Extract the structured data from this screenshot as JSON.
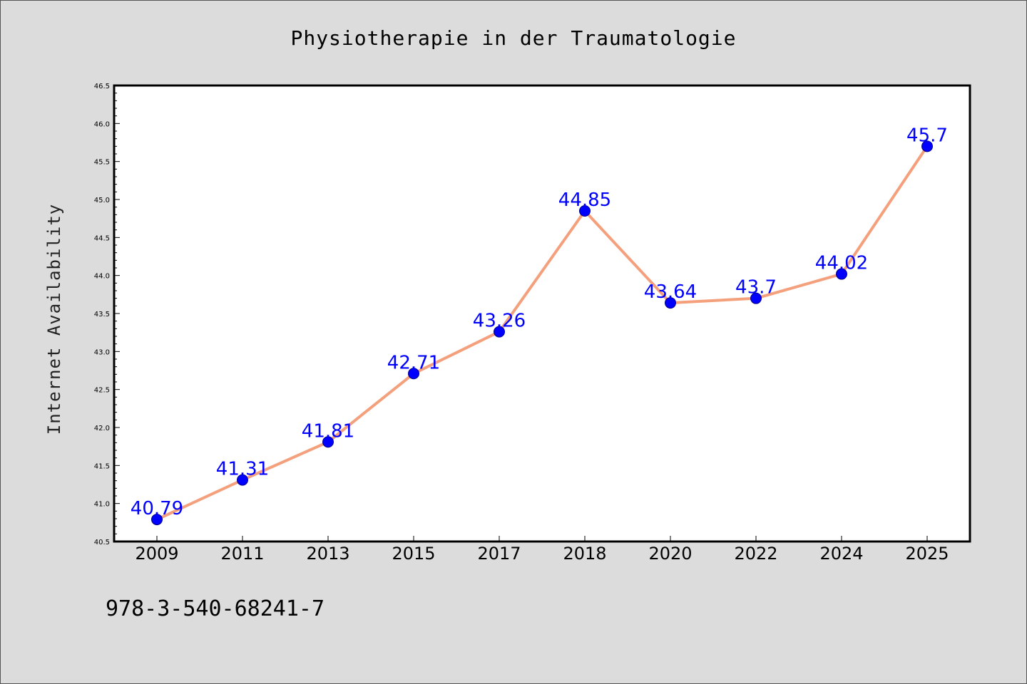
{
  "chart_data": {
    "type": "line",
    "title": "Physiotherapie in der Traumatologie",
    "xlabel": "",
    "ylabel": "Internet Availability",
    "categories": [
      "2009",
      "2011",
      "2013",
      "2015",
      "2017",
      "2018",
      "2020",
      "2022",
      "2024",
      "2025"
    ],
    "values": [
      40.79,
      41.31,
      41.81,
      42.71,
      43.26,
      44.85,
      43.64,
      43.7,
      44.02,
      45.7
    ],
    "data_labels": [
      "40.79",
      "41.31",
      "41.81",
      "42.71",
      "43.26",
      "44.85",
      "43.64",
      "43.7",
      "44.02",
      "45.7"
    ],
    "ylim": [
      40.5,
      46.5
    ],
    "yticks": [
      "40.5",
      "41.0",
      "41.5",
      "42.0",
      "42.5",
      "43.0",
      "43.5",
      "44.0",
      "44.5",
      "45.0",
      "45.5",
      "46.0",
      "46.5"
    ],
    "grid": false,
    "line_color": "#f4a07c",
    "marker_color": "#0000ff",
    "label_color": "#0000ff"
  },
  "footer": {
    "isbn": "978-3-540-68241-7"
  }
}
